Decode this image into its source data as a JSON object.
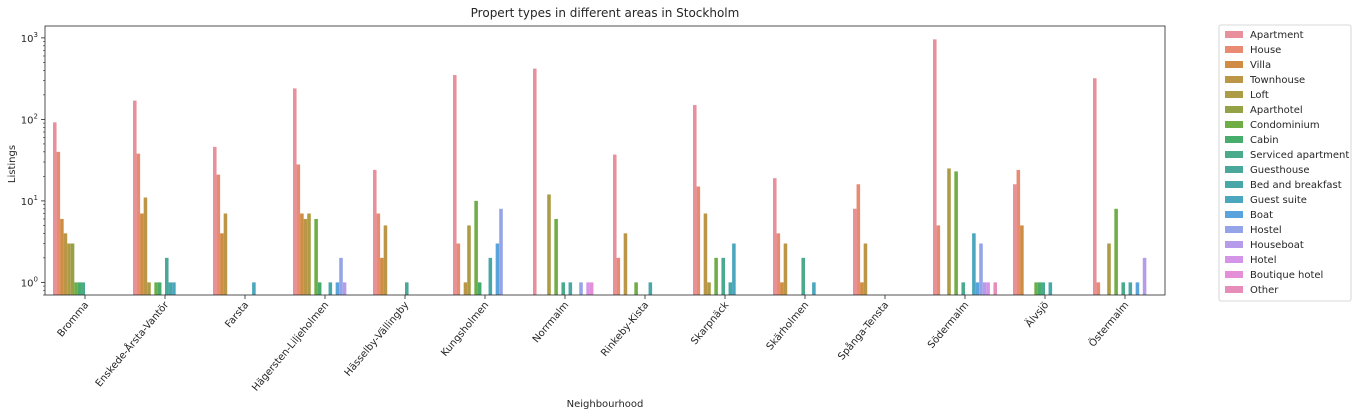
{
  "chart_data": {
    "type": "bar",
    "title": "Propert types in different areas in Stockholm",
    "xlabel": "Neighbourhood",
    "ylabel": "Listings",
    "yscale": "log",
    "ylim": [
      0.7,
      1400
    ],
    "yticks": [
      {
        "value": 1,
        "base": "10",
        "exp": "0"
      },
      {
        "value": 10,
        "base": "10",
        "exp": "1"
      },
      {
        "value": 100,
        "base": "10",
        "exp": "2"
      },
      {
        "value": 1000,
        "base": "10",
        "exp": "3"
      }
    ],
    "grid": false,
    "legend_position": "outside-right",
    "categories": [
      "Bromma",
      "Enskede-Årsta-Vantör",
      "Farsta",
      "Hägersten-Liljeholmen",
      "Hässelby-Vällingby",
      "Kungsholmen",
      "Norrmalm",
      "Rinkeby-Kista",
      "Skarpnäck",
      "Skärholmen",
      "Spånga-Tensta",
      "Södermalm",
      "Älvsjö",
      "Östermalm"
    ],
    "series": [
      {
        "name": "Apartment",
        "color": "#e8919d",
        "values": [
          92,
          170,
          46,
          240,
          24,
          350,
          420,
          37,
          150,
          19,
          8,
          960,
          16,
          320
        ]
      },
      {
        "name": "House",
        "color": "#e88b72",
        "values": [
          40,
          38,
          21,
          28,
          7,
          3,
          null,
          2,
          15,
          4,
          16,
          5,
          24,
          1
        ]
      },
      {
        "name": "Villa",
        "color": "#d08c45",
        "values": [
          6,
          7,
          4,
          7,
          2,
          null,
          null,
          null,
          null,
          1,
          1,
          null,
          5,
          null
        ]
      },
      {
        "name": "Townhouse",
        "color": "#bc9647",
        "values": [
          4,
          11,
          7,
          6,
          5,
          1,
          null,
          4,
          7,
          3,
          3,
          null,
          null,
          null
        ]
      },
      {
        "name": "Loft",
        "color": "#ab9c45",
        "values": [
          3,
          1,
          null,
          7,
          null,
          5,
          12,
          null,
          1,
          null,
          null,
          25,
          null,
          3
        ]
      },
      {
        "name": "Aparthotel",
        "color": "#94a144",
        "values": [
          3,
          null,
          null,
          null,
          null,
          null,
          null,
          null,
          null,
          null,
          null,
          null,
          null,
          null
        ]
      },
      {
        "name": "Condominium",
        "color": "#6fae46",
        "values": [
          1,
          1,
          null,
          6,
          null,
          10,
          6,
          1,
          2,
          null,
          null,
          23,
          1,
          8
        ]
      },
      {
        "name": "Cabin",
        "color": "#47ad6d",
        "values": [
          1,
          1,
          null,
          1,
          null,
          1,
          null,
          null,
          null,
          null,
          null,
          null,
          1,
          null
        ]
      },
      {
        "name": "Serviced apartment",
        "color": "#49ab8c",
        "values": [
          1,
          null,
          null,
          null,
          null,
          null,
          1,
          null,
          2,
          2,
          null,
          1,
          1,
          1
        ]
      },
      {
        "name": "Guesthouse",
        "color": "#4aa89b",
        "values": [
          null,
          2,
          null,
          null,
          1,
          null,
          null,
          null,
          null,
          null,
          null,
          null,
          null,
          null
        ]
      },
      {
        "name": "Bed and breakfast",
        "color": "#4aa7a8",
        "values": [
          null,
          1,
          null,
          1,
          null,
          2,
          1,
          1,
          1,
          null,
          null,
          null,
          1,
          1
        ]
      },
      {
        "name": "Guest suite",
        "color": "#4ba7bd",
        "values": [
          null,
          1,
          1,
          null,
          null,
          null,
          null,
          null,
          3,
          1,
          null,
          4,
          null,
          null
        ]
      },
      {
        "name": "Boat",
        "color": "#5aa3dc",
        "values": [
          null,
          null,
          null,
          1,
          null,
          3,
          null,
          null,
          null,
          null,
          null,
          1,
          null,
          1
        ]
      },
      {
        "name": "Hostel",
        "color": "#95a4e8",
        "values": [
          null,
          null,
          null,
          2,
          null,
          8,
          1,
          null,
          null,
          null,
          null,
          3,
          null,
          null
        ]
      },
      {
        "name": "Houseboat",
        "color": "#b59bea",
        "values": [
          null,
          null,
          null,
          1,
          null,
          null,
          null,
          null,
          null,
          null,
          null,
          1,
          null,
          2
        ]
      },
      {
        "name": "Hotel",
        "color": "#d494e8",
        "values": [
          null,
          null,
          null,
          null,
          null,
          null,
          1,
          null,
          null,
          null,
          null,
          1,
          null,
          null
        ]
      },
      {
        "name": "Boutique hotel",
        "color": "#e48fd7",
        "values": [
          null,
          null,
          null,
          null,
          null,
          null,
          1,
          null,
          null,
          null,
          null,
          null,
          null,
          null
        ]
      },
      {
        "name": "Other",
        "color": "#e68db9",
        "values": [
          null,
          null,
          null,
          null,
          null,
          null,
          null,
          null,
          null,
          null,
          null,
          1,
          null,
          null
        ]
      }
    ]
  }
}
